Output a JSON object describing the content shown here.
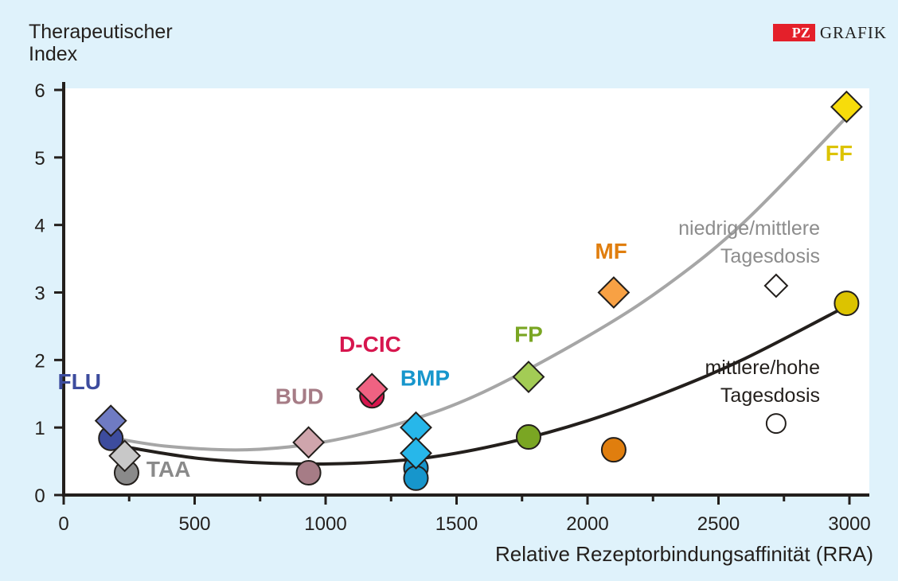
{
  "brand": {
    "box": "PZ",
    "text": "GRAFIK"
  },
  "annotations": {
    "low_dose": [
      "niedrige/mittlere",
      "Tagesdosis"
    ],
    "high_dose": [
      "mittlere/hohe",
      "Tagesdosis"
    ]
  },
  "chart_data": {
    "type": "scatter",
    "title": "",
    "ylabel": [
      "Therapeutischer",
      "Index"
    ],
    "xlabel": "Relative Rezeptorbindungsaffinität (RRA)",
    "xlim": [
      0,
      3000
    ],
    "ylim": [
      0,
      6
    ],
    "xticks": [
      0,
      500,
      1000,
      1500,
      2000,
      2500,
      3000
    ],
    "xtick_labels": [
      "0",
      "500",
      "1000",
      "1500",
      "2000",
      "2500",
      "3000"
    ],
    "yticks": [
      0,
      1,
      2,
      3,
      4,
      5,
      6
    ],
    "ytick_labels": [
      "0",
      "1",
      "2",
      "3",
      "4",
      "5",
      "6"
    ],
    "grid": {
      "vertical": true,
      "horizontal": false
    },
    "series": [
      {
        "marker": "diamond",
        "points": [
          {
            "label": "FLU",
            "x": 180,
            "y": 1.1,
            "color": "#6f7bc3"
          },
          {
            "label": "TAA",
            "x": 233,
            "y": 0.58,
            "color": "#c8c8c8"
          },
          {
            "label": "BUD",
            "x": 935,
            "y": 0.78,
            "color": "#cfa5ac"
          },
          {
            "label": "D-CIC",
            "x": 1177,
            "y": 1.57,
            "color": "#f06282"
          },
          {
            "label": "BMP",
            "x": 1345,
            "y": 1.0,
            "color": "#27b7ea"
          },
          {
            "label": "BMP",
            "x": 1345,
            "y": 0.62,
            "color": "#27b7ea"
          },
          {
            "label": "FP",
            "x": 1775,
            "y": 1.75,
            "color": "#a3cc55"
          },
          {
            "label": "MF",
            "x": 2100,
            "y": 3.0,
            "color": "#f8a144"
          },
          {
            "label": "FF",
            "x": 2989,
            "y": 5.75,
            "color": "#f7dc0b"
          },
          {
            "label": "",
            "x": 2720,
            "y": 3.1,
            "color": "#ffffff"
          }
        ]
      },
      {
        "marker": "circle",
        "points": [
          {
            "label": "FLU",
            "x": 180,
            "y": 0.84,
            "color": "#3d4c9e"
          },
          {
            "label": "TAA",
            "x": 240,
            "y": 0.33,
            "color": "#8a8a8a"
          },
          {
            "label": "BUD",
            "x": 935,
            "y": 0.33,
            "color": "#a67c86"
          },
          {
            "label": "D-CIC",
            "x": 1177,
            "y": 1.47,
            "color": "#d7164e"
          },
          {
            "label": "BMP",
            "x": 1345,
            "y": 0.4,
            "color": "#1796cc"
          },
          {
            "label": "BMP",
            "x": 1345,
            "y": 0.25,
            "color": "#1796cc"
          },
          {
            "label": "FP",
            "x": 1775,
            "y": 0.86,
            "color": "#7aa623"
          },
          {
            "label": "MF",
            "x": 2100,
            "y": 0.67,
            "color": "#e07e0e"
          },
          {
            "label": "FF",
            "x": 2989,
            "y": 2.84,
            "color": "#dcc300"
          },
          {
            "label": "",
            "x": 2720,
            "y": 1.06,
            "color": "#ffffff"
          }
        ]
      }
    ],
    "trend_lines": [
      {
        "color": "#a6a6a6",
        "points": [
          [
            180,
            0.85
          ],
          [
            400,
            0.72
          ],
          [
            700,
            0.67
          ],
          [
            1000,
            0.79
          ],
          [
            1300,
            1.08
          ],
          [
            1600,
            1.52
          ],
          [
            2000,
            2.35
          ],
          [
            2300,
            3.1
          ],
          [
            2600,
            4.05
          ],
          [
            2990,
            5.6
          ]
        ]
      },
      {
        "color": "#231f1c",
        "points": [
          [
            180,
            0.75
          ],
          [
            500,
            0.55
          ],
          [
            800,
            0.47
          ],
          [
            1100,
            0.47
          ],
          [
            1400,
            0.56
          ],
          [
            1700,
            0.78
          ],
          [
            2000,
            1.1
          ],
          [
            2300,
            1.52
          ],
          [
            2600,
            2.02
          ],
          [
            2990,
            2.8
          ]
        ]
      }
    ],
    "point_labels": [
      {
        "text": "FLU",
        "color": "#3d4c9e",
        "x": 60,
        "y": 1.57
      },
      {
        "text": "TAA",
        "color": "#8a8a8a",
        "x": 400,
        "y": 0.27
      },
      {
        "text": "BUD",
        "color": "#a67c86",
        "x": 900,
        "y": 1.35
      },
      {
        "text": "D-CIC",
        "color": "#d7164e",
        "x": 1170,
        "y": 2.12
      },
      {
        "text": "BMP",
        "color": "#1796cc",
        "x": 1380,
        "y": 1.62
      },
      {
        "text": "FP",
        "color": "#7aa623",
        "x": 1775,
        "y": 2.27
      },
      {
        "text": "MF",
        "color": "#e07e0e",
        "x": 2090,
        "y": 3.5
      },
      {
        "text": "FF",
        "color": "#dcc300",
        "x": 2960,
        "y": 4.95
      }
    ]
  }
}
